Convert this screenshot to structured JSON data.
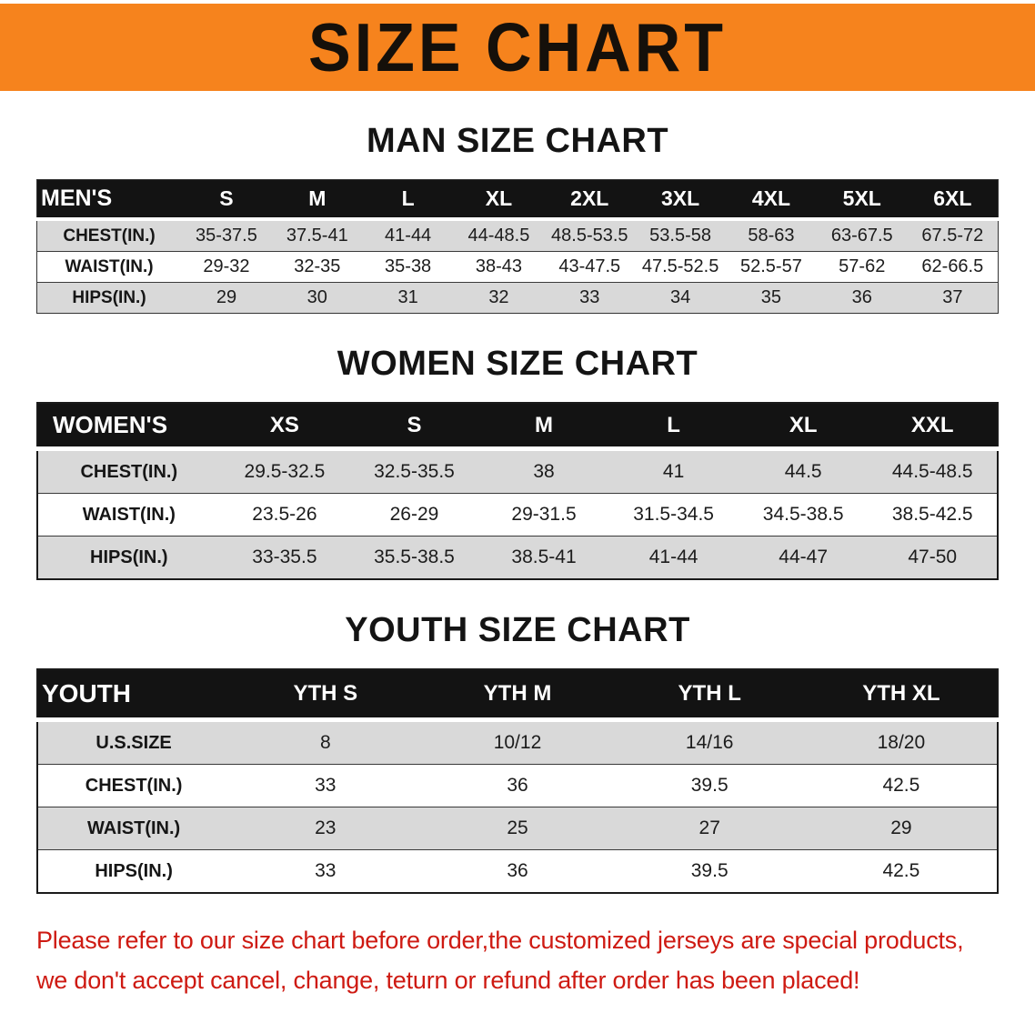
{
  "banner": {
    "title": "SIZE CHART"
  },
  "colors": {
    "banner_bg": "#F6831D",
    "header_bg": "#131313",
    "row_alt": "#D9D9D9",
    "text_dark": "#1A1A1A",
    "disclaimer_red": "#CE1A12"
  },
  "men": {
    "heading": "MAN SIZE CHART",
    "table": {
      "header": [
        "MEN'S",
        "S",
        "M",
        "L",
        "XL",
        "2XL",
        "3XL",
        "4XL",
        "5XL",
        "6XL"
      ],
      "rows": [
        {
          "label": "CHEST(IN.)",
          "values": [
            "35-37.5",
            "37.5-41",
            "41-44",
            "44-48.5",
            "48.5-53.5",
            "53.5-58",
            "58-63",
            "63-67.5",
            "67.5-72"
          ]
        },
        {
          "label": "WAIST(IN.)",
          "values": [
            "29-32",
            "32-35",
            "35-38",
            "38-43",
            "43-47.5",
            "47.5-52.5",
            "52.5-57",
            "57-62",
            "62-66.5"
          ]
        },
        {
          "label": "HIPS(IN.)",
          "values": [
            "29",
            "30",
            "31",
            "32",
            "33",
            "34",
            "35",
            "36",
            "37"
          ]
        }
      ]
    }
  },
  "women": {
    "heading": "WOMEN SIZE CHART",
    "table": {
      "header": [
        "WOMEN'S",
        "XS",
        "S",
        "M",
        "L",
        "XL",
        "XXL"
      ],
      "rows": [
        {
          "label": "CHEST(IN.)",
          "values": [
            "29.5-32.5",
            "32.5-35.5",
            "38",
            "41",
            "44.5",
            "44.5-48.5"
          ]
        },
        {
          "label": "WAIST(IN.)",
          "values": [
            "23.5-26",
            "26-29",
            "29-31.5",
            "31.5-34.5",
            "34.5-38.5",
            "38.5-42.5"
          ]
        },
        {
          "label": "HIPS(IN.)",
          "values": [
            "33-35.5",
            "35.5-38.5",
            "38.5-41",
            "41-44",
            "44-47",
            "47-50"
          ]
        }
      ]
    }
  },
  "youth": {
    "heading": "YOUTH SIZE CHART",
    "table": {
      "header": [
        "YOUTH",
        "YTH S",
        "YTH M",
        "YTH L",
        "YTH XL"
      ],
      "rows": [
        {
          "label": "U.S.SIZE",
          "values": [
            "8",
            "10/12",
            "14/16",
            "18/20"
          ]
        },
        {
          "label": "CHEST(IN.)",
          "values": [
            "33",
            "36",
            "39.5",
            "42.5"
          ]
        },
        {
          "label": "WAIST(IN.)",
          "values": [
            "23",
            "25",
            "27",
            "29"
          ]
        },
        {
          "label": "HIPS(IN.)",
          "values": [
            "33",
            "36",
            "39.5",
            "42.5"
          ]
        }
      ]
    }
  },
  "disclaimer": {
    "line1": "Please refer to our size chart before order,the customized jerseys are special products,",
    "line2": "we don't accept cancel, change, teturn or refund after order has been placed!"
  }
}
